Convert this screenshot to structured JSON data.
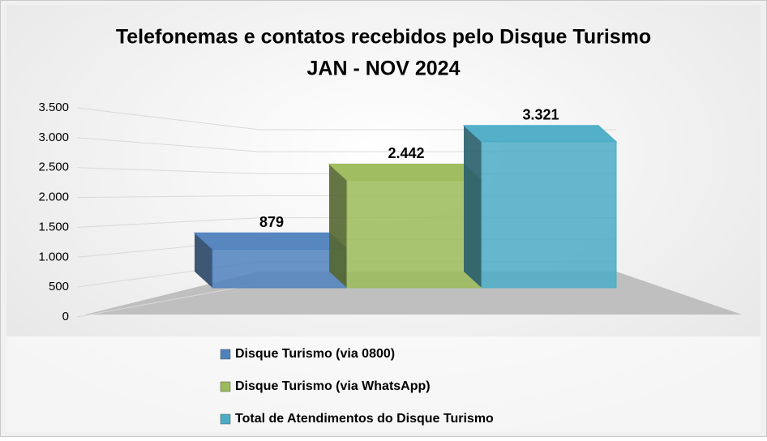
{
  "chart_data": {
    "type": "bar3d",
    "title": [
      "Telefonemas e contatos recebidos pelo Disque Turismo",
      "JAN - NOV 2024"
    ],
    "categories": [
      null
    ],
    "series": [
      {
        "name": "Disque Turismo (via 0800)",
        "color": "#4f81bd",
        "values": [
          879
        ],
        "value_labels": [
          "879"
        ]
      },
      {
        "name": "Disque Turismo (via WhatsApp)",
        "color": "#9bbb59",
        "values": [
          2442
        ],
        "value_labels": [
          "2.442"
        ]
      },
      {
        "name": "Total de Atendimentos do Disque Turismo",
        "color": "#4bacc6",
        "values": [
          3321
        ],
        "value_labels": [
          "3.321"
        ]
      }
    ],
    "ylim": [
      0,
      3500
    ],
    "yticks": [
      0,
      500,
      {
        "value": 1000,
        "label": "1.000"
      },
      {
        "value": 1500,
        "label": "1.500"
      },
      {
        "value": 2000,
        "label": "2.000"
      },
      {
        "value": 2500,
        "label": "2.500"
      },
      {
        "value": 3000,
        "label": "3.000"
      },
      {
        "value": 3500,
        "label": "3.500"
      }
    ],
    "grid": true,
    "legend": "bottom"
  }
}
